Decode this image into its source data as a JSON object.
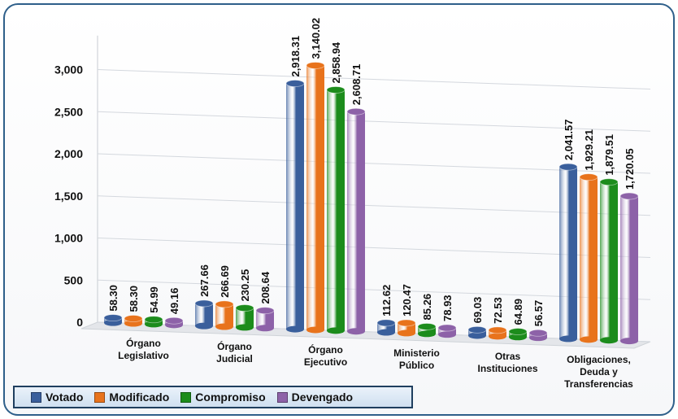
{
  "chart_data": {
    "type": "bar",
    "title": "",
    "xlabel": "",
    "ylabel": "",
    "ylim": [
      0,
      3500
    ],
    "yticks": [
      "0",
      "500",
      "1,000",
      "1,500",
      "2,000",
      "2,500",
      "3,000"
    ],
    "grid": true,
    "legend_position": "bottom-left",
    "categories": [
      [
        "Órgano",
        "Legislativo"
      ],
      [
        "Órgano",
        "Judicial"
      ],
      [
        "Órgano",
        "Ejecutivo"
      ],
      [
        "Ministerio",
        "Público"
      ],
      [
        "Otras",
        "Instituciones"
      ],
      [
        "Obligaciones,",
        "Deuda y",
        "Transferencias"
      ]
    ],
    "series": [
      {
        "name": "Votado",
        "color": "#3a5f9c",
        "values": [
          58.3,
          267.66,
          2918.31,
          112.62,
          69.03,
          2041.57
        ],
        "labels": [
          "58.30",
          "267.66",
          "2,918.31",
          "112.62",
          "69.03",
          "2,041.57"
        ]
      },
      {
        "name": "Modificado",
        "color": "#e8731c",
        "values": [
          58.3,
          266.69,
          3140.02,
          120.47,
          72.53,
          1929.21
        ],
        "labels": [
          "58.30",
          "266.69",
          "3,140.02",
          "120.47",
          "72.53",
          "1,929.21"
        ]
      },
      {
        "name": "Compromiso",
        "color": "#1c8c1c",
        "values": [
          54.99,
          230.25,
          2858.94,
          85.26,
          64.89,
          1879.51
        ],
        "labels": [
          "54.99",
          "230.25",
          "2,858.94",
          "85.26",
          "64.89",
          "1,879.51"
        ]
      },
      {
        "name": "Devengado",
        "color": "#8d62a8",
        "values": [
          49.16,
          208.64,
          2608.71,
          78.93,
          56.57,
          1720.05
        ],
        "labels": [
          "49.16",
          "208.64",
          "2,608.71",
          "78.93",
          "56.57",
          "1,720.05"
        ]
      }
    ]
  }
}
